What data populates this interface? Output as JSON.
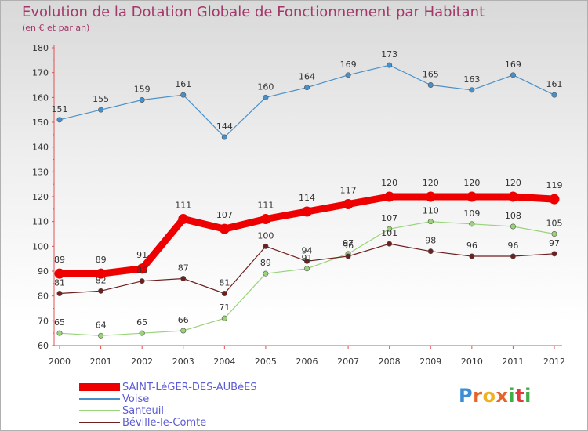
{
  "title": "Evolution de la Dotation Globale de Fonctionnement par Habitant",
  "subtitle": "(en € et par an)",
  "logo": {
    "letters": [
      "P",
      "r",
      "o",
      "x",
      "i",
      "t",
      "i"
    ],
    "colors": [
      "#3b8fd6",
      "#e8632a",
      "#f2b21f",
      "#e8632a",
      "#3fae49",
      "#e03a3a",
      "#3fae49"
    ]
  },
  "chart_data": {
    "type": "line",
    "title": "Evolution de la Dotation Globale de Fonctionnement par Habitant",
    "subtitle": "(en € et par an)",
    "xlabel": "",
    "ylabel": "",
    "x": [
      "2000",
      "2001",
      "2002",
      "2003",
      "2004",
      "2005",
      "2006",
      "2007",
      "2008",
      "2009",
      "2010",
      "2011",
      "2012"
    ],
    "ylim": [
      60,
      180
    ],
    "yticks": [
      60,
      70,
      80,
      90,
      100,
      110,
      120,
      130,
      140,
      150,
      160,
      170,
      180
    ],
    "grid": false,
    "legend_position": "bottom-left",
    "series": [
      {
        "name": "SAINT-LéGER-DES-AUBéES",
        "color": "#ee0000",
        "values": [
          89,
          89,
          91,
          111,
          107,
          111,
          114,
          117,
          120,
          120,
          120,
          120,
          119
        ]
      },
      {
        "name": "Voise",
        "color": "#4a90c8",
        "values": [
          151,
          155,
          159,
          161,
          144,
          160,
          164,
          169,
          173,
          165,
          163,
          169,
          161
        ]
      },
      {
        "name": "Santeuil",
        "color": "#99d47a",
        "values": [
          65,
          64,
          65,
          66,
          71,
          89,
          91,
          97,
          107,
          110,
          109,
          108,
          105
        ]
      },
      {
        "name": "Béville-le-Comte",
        "color": "#6e1f1f",
        "values": [
          81,
          82,
          86,
          87,
          81,
          100,
          94,
          96,
          101,
          98,
          96,
          96,
          97
        ]
      }
    ]
  }
}
